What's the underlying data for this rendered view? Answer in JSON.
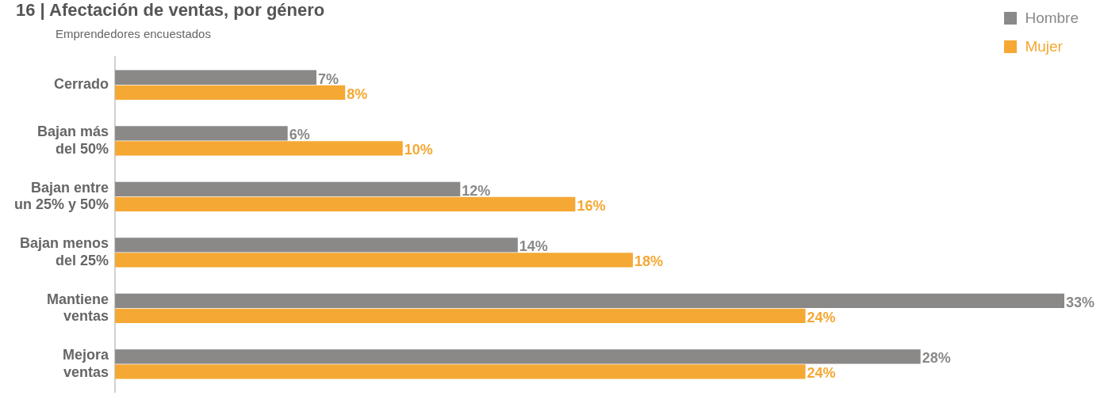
{
  "chart_data": {
    "type": "bar",
    "orientation": "horizontal",
    "title": "16 | Afectación de ventas, por género",
    "subtitle": "Emprendedores encuestados",
    "categories": [
      "Cerrado",
      "Bajan más del 50%",
      "Bajan entre un 25% y 50%",
      "Bajan menos del 25%",
      "Mantiene ventas",
      "Mejora ventas"
    ],
    "series": [
      {
        "name": "Hombre",
        "color": "#8a8988",
        "values": [
          7,
          6,
          12,
          14,
          33,
          28
        ],
        "value_labels": [
          "7%",
          "6%",
          "12%",
          "14%",
          "33%",
          "28%"
        ]
      },
      {
        "name": "Mujer",
        "color": "#f5a833",
        "values": [
          8,
          10,
          16,
          18,
          24,
          24
        ],
        "value_labels": [
          "8%",
          "10%",
          "16%",
          "18%",
          "24%",
          "24%"
        ]
      }
    ],
    "xlim": [
      0,
      33
    ],
    "tick_labels": "y",
    "legend": "top right"
  }
}
